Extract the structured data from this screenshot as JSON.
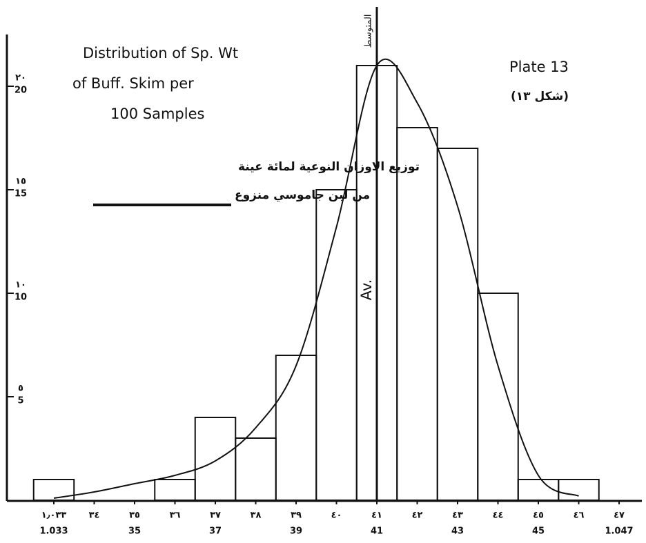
{
  "chart_data": {
    "type": "histogram",
    "title": [
      "Distribution of Sp. Wt",
      "of Buff. Skim per",
      "100 Samples"
    ],
    "title_ar": [
      "توزيع الاوزان النوعية لمائة عينة",
      "من لبن جاموسي منزوع"
    ],
    "plate": "Plate 13",
    "plate_ar": "(شكل ١٣)",
    "average_label": "Av.",
    "average_label_ar": "المتوسط",
    "categories": [
      "1.033",
      "34",
      "35",
      "36",
      "37",
      "38",
      "39",
      "40",
      "41",
      "42",
      "43",
      "44",
      "45",
      "46",
      "1.047"
    ],
    "categories_ar": [
      "١٫٠٣٣",
      "٣٤",
      "٣٥",
      "٣٦",
      "٣٧",
      "٣٨",
      "٣٩",
      "٤٠",
      "٤١",
      "٤٢",
      "٤٣",
      "٤٤",
      "٤٥",
      "٤٦",
      "٤٧"
    ],
    "category_sublabels": [
      "1.033",
      null,
      "35",
      null,
      "37",
      null,
      "39",
      null,
      "41",
      null,
      "43",
      null,
      "45",
      null,
      "1.047"
    ],
    "values": [
      1,
      0,
      0,
      1,
      4,
      3,
      7,
      15,
      21,
      18,
      17,
      10,
      1,
      1,
      0
    ],
    "fit_curve": [
      0.1,
      0.4,
      0.8,
      1.2,
      1.9,
      3.5,
      6.5,
      13.2,
      21,
      19.2,
      14.2,
      6.5,
      1.2,
      0.2,
      null
    ],
    "ylim": [
      0,
      22.5
    ],
    "yticks": [
      5,
      10,
      15,
      20
    ],
    "yticks_ar": [
      "٥",
      "١٠",
      "١٥",
      "٢٠"
    ],
    "color": "#111111"
  }
}
